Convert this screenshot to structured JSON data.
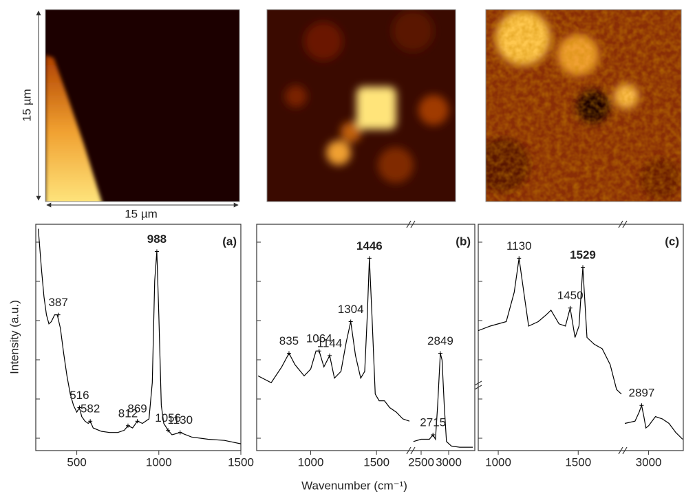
{
  "x_label": "Wavenumber (cm⁻¹)",
  "y_label": "Intensity (a.u.)",
  "maps": {
    "scale_y": "15 µm",
    "scale_x": "15 µm"
  },
  "chart_data": [
    {
      "type": "line",
      "panel_label": "(a)",
      "color": "#000000",
      "ylim": [
        0,
        1
      ],
      "segments": [
        {
          "xlim": [
            250,
            1500
          ],
          "xticks": [
            500,
            1000,
            1500
          ],
          "x": [
            265,
            285,
            300,
            315,
            330,
            345,
            365,
            381,
            400,
            420,
            440,
            460,
            480,
            500,
            516,
            530,
            550,
            570,
            582,
            600,
            650,
            700,
            750,
            790,
            812,
            840,
            869,
            900,
            940,
            960,
            975,
            988,
            1000,
            1015,
            1030,
            1056,
            1080,
            1130,
            1200,
            1300,
            1400,
            1500
          ],
          "values": [
            0.98,
            0.8,
            0.68,
            0.6,
            0.56,
            0.57,
            0.6,
            0.6,
            0.54,
            0.43,
            0.33,
            0.25,
            0.2,
            0.17,
            0.19,
            0.15,
            0.13,
            0.12,
            0.13,
            0.1,
            0.085,
            0.08,
            0.08,
            0.09,
            0.11,
            0.1,
            0.13,
            0.12,
            0.14,
            0.3,
            0.75,
            0.88,
            0.6,
            0.2,
            0.12,
            0.09,
            0.07,
            0.08,
            0.06,
            0.05,
            0.045,
            0.03
          ],
          "peaks": [
            {
              "x": 387,
              "y": 0.6
            },
            {
              "x": 516,
              "y": 0.19
            },
            {
              "x": 582,
              "y": 0.13
            },
            {
              "x": 812,
              "y": 0.11
            },
            {
              "x": 869,
              "y": 0.13
            },
            {
              "x": 988,
              "y": 0.88,
              "bold": true
            },
            {
              "x": 1056,
              "y": 0.09
            },
            {
              "x": 1130,
              "y": 0.08
            }
          ]
        }
      ]
    },
    {
      "type": "line",
      "panel_label": "(b)",
      "color": "#000000",
      "ylim": [
        0,
        1
      ],
      "segments": [
        {
          "xlim": [
            600,
            1750
          ],
          "xticks": [
            1000,
            1500
          ],
          "x": [
            600,
            700,
            780,
            835,
            880,
            950,
            1000,
            1040,
            1064,
            1100,
            1144,
            1180,
            1230,
            1270,
            1304,
            1340,
            1380,
            1410,
            1430,
            1446,
            1465,
            1490,
            1520,
            1560,
            1600,
            1650,
            1700,
            1750
          ],
          "values": [
            0.33,
            0.3,
            0.37,
            0.43,
            0.38,
            0.33,
            0.36,
            0.44,
            0.44,
            0.37,
            0.42,
            0.32,
            0.35,
            0.48,
            0.57,
            0.42,
            0.32,
            0.35,
            0.6,
            0.85,
            0.6,
            0.25,
            0.22,
            0.22,
            0.19,
            0.17,
            0.14,
            0.13
          ],
          "peaks": [
            {
              "x": 835,
              "y": 0.43
            },
            {
              "x": 1064,
              "y": 0.44
            },
            {
              "x": 1144,
              "y": 0.42
            },
            {
              "x": 1304,
              "y": 0.57
            },
            {
              "x": 1446,
              "y": 0.85,
              "bold": true
            }
          ]
        },
        {
          "xlim": [
            2350,
            3450
          ],
          "xticks": [
            2500,
            3000
          ],
          "x": [
            2360,
            2500,
            2650,
            2715,
            2760,
            2800,
            2849,
            2880,
            2920,
            2960,
            3050,
            3200,
            3440
          ],
          "values": [
            0.04,
            0.05,
            0.05,
            0.07,
            0.05,
            0.2,
            0.43,
            0.4,
            0.2,
            0.04,
            0.02,
            0.015,
            0.015
          ],
          "peaks": [
            {
              "x": 2715,
              "y": 0.07
            },
            {
              "x": 2849,
              "y": 0.43
            }
          ]
        }
      ]
    },
    {
      "type": "line",
      "panel_label": "(c)",
      "color": "#000000",
      "ylim": [
        0,
        1
      ],
      "segments": [
        {
          "xlim": [
            875,
            1770
          ],
          "xticks": [
            1000,
            1500
          ],
          "x": [
            875,
            950,
            1050,
            1100,
            1130,
            1160,
            1190,
            1250,
            1300,
            1330,
            1380,
            1420,
            1450,
            1480,
            1505,
            1529,
            1555,
            1600,
            1650,
            1700,
            1740,
            1770
          ],
          "values": [
            0.53,
            0.55,
            0.57,
            0.7,
            0.85,
            0.7,
            0.55,
            0.57,
            0.6,
            0.62,
            0.56,
            0.55,
            0.63,
            0.5,
            0.55,
            0.81,
            0.5,
            0.47,
            0.45,
            0.38,
            0.27,
            0.25
          ],
          "peaks": [
            {
              "x": 1130,
              "y": 0.85
            },
            {
              "x": 1450,
              "y": 0.63
            },
            {
              "x": 1529,
              "y": 0.81,
              "bold": true
            }
          ]
        },
        {
          "xlim": [
            2650,
            3510
          ],
          "xticks": [
            3000
          ],
          "x": [
            2650,
            2800,
            2860,
            2897,
            2930,
            2960,
            3000,
            3100,
            3200,
            3300,
            3400,
            3500
          ],
          "values": [
            0.12,
            0.13,
            0.17,
            0.2,
            0.15,
            0.1,
            0.11,
            0.15,
            0.14,
            0.12,
            0.08,
            0.05
          ],
          "peaks": [
            {
              "x": 2897,
              "y": 0.2
            }
          ]
        }
      ]
    }
  ]
}
